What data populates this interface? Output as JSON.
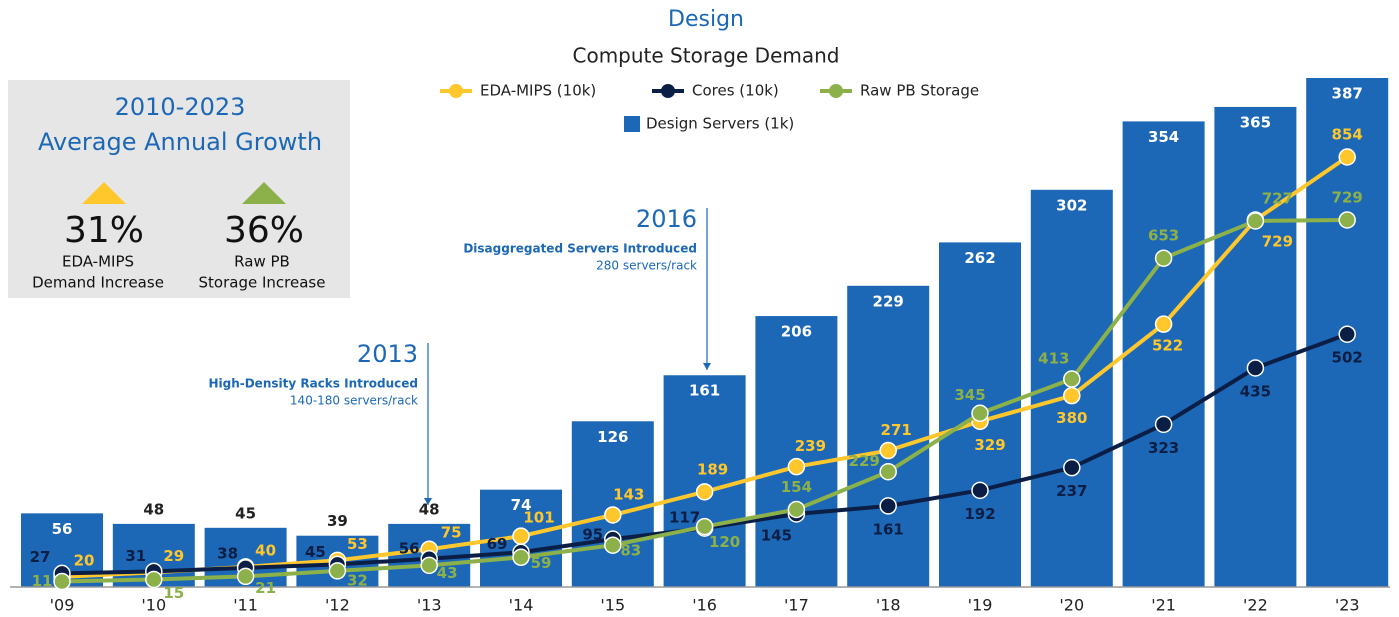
{
  "chart_data": {
    "type": "bar",
    "title": "Design",
    "subtitle": "Compute Storage Demand",
    "categories": [
      "'09",
      "'10",
      "'11",
      "'12",
      "'13",
      "'14",
      "'15",
      "'16",
      "'17",
      "'18",
      "'19",
      "'20",
      "'21",
      "'22",
      "'23"
    ],
    "series": [
      {
        "name": "EDA-MIPS (10k)",
        "type": "line",
        "color": "#ffc72c",
        "values": [
          20,
          29,
          40,
          53,
          75,
          101,
          143,
          189,
          239,
          271,
          329,
          380,
          522,
          729,
          854
        ]
      },
      {
        "name": "Cores (10k)",
        "type": "line",
        "color": "#0b1e45",
        "values": [
          27,
          31,
          38,
          45,
          56,
          69,
          95,
          117,
          145,
          161,
          192,
          237,
          323,
          435,
          502
        ]
      },
      {
        "name": "Raw PB Storage",
        "type": "line",
        "color": "#8cb04a",
        "values": [
          11,
          15,
          21,
          32,
          43,
          59,
          83,
          120,
          154,
          229,
          345,
          413,
          653,
          727,
          729
        ]
      },
      {
        "name": "Design Servers (1k)",
        "type": "bar",
        "color": "#1c68b6",
        "values": [
          56,
          48,
          45,
          39,
          48,
          74,
          126,
          161,
          206,
          229,
          262,
          302,
          354,
          365,
          387
        ]
      }
    ],
    "annotations": [
      {
        "year": "2013",
        "title": "High-Density Racks Introduced",
        "text": "140-180 servers/rack"
      },
      {
        "year": "2016",
        "title": "Disaggregated Servers Introduced",
        "text": "280 servers/rack"
      }
    ],
    "growth_box": {
      "title": [
        "2010-2023",
        "Average Annual Growth"
      ],
      "stats": [
        {
          "value": {
            "value": 31,
            "label": "31%"
          },
          "text": [
            "EDA-MIPS",
            "Demand Increase"
          ]
        },
        {
          "value": {
            "value": 36,
            "label": "36%"
          },
          "text": [
            "Raw PB",
            "Storage Increase"
          ]
        }
      ]
    }
  }
}
